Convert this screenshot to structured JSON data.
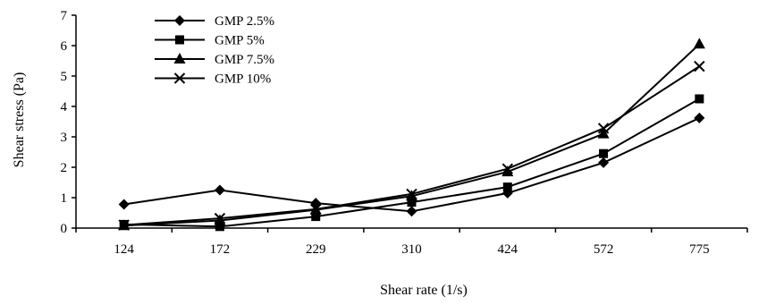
{
  "chart_data": {
    "type": "line",
    "title": "",
    "xlabel": "Shear rate (1/s)",
    "ylabel": "Shear stress (Pa)",
    "categories": [
      "124",
      "172",
      "229",
      "310",
      "424",
      "572",
      "775"
    ],
    "ylim": [
      0,
      7
    ],
    "yticks": [
      "0",
      "1",
      "2",
      "3",
      "4",
      "5",
      "6",
      "7"
    ],
    "grid": false,
    "legend_position": "top-left",
    "series": [
      {
        "name": "GMP 2.5%",
        "marker": "diamond",
        "values": [
          0.78,
          1.25,
          0.82,
          0.55,
          1.15,
          2.15,
          3.62
        ]
      },
      {
        "name": "GMP 5%",
        "marker": "square",
        "values": [
          0.12,
          0.05,
          0.38,
          0.85,
          1.35,
          2.45,
          4.25
        ]
      },
      {
        "name": "GMP 7.5%",
        "marker": "triangle",
        "values": [
          0.08,
          0.25,
          0.6,
          1.05,
          1.85,
          3.1,
          6.05
        ]
      },
      {
        "name": "GMP 10%",
        "marker": "x",
        "values": [
          0.1,
          0.32,
          0.62,
          1.12,
          1.95,
          3.28,
          5.32
        ]
      }
    ]
  }
}
